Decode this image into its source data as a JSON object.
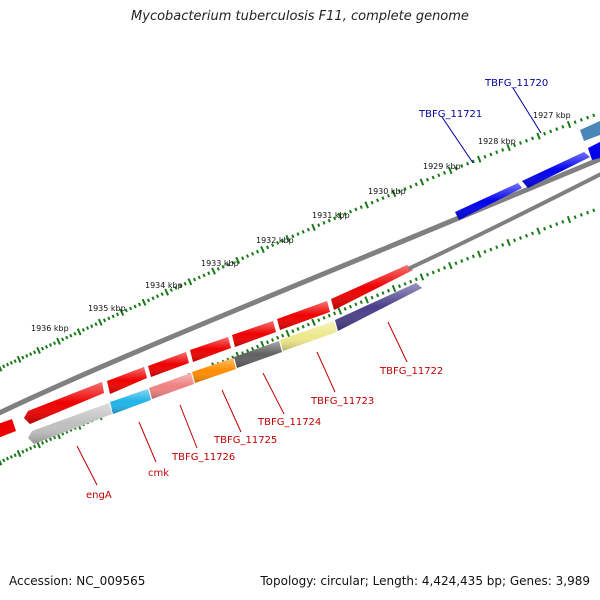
{
  "title": "Mycobacterium tuberculosis F11, complete genome",
  "accession": "Accession: NC_009565",
  "topology": "Topology: circular; Length: 4,424,435 bp; Genes: 3,989",
  "colors": {
    "backbone": "#808080",
    "tick": "#1a7a1a",
    "forward_label": "#00009a",
    "reverse_label": "#c00000"
  },
  "kbp_labels": [
    "1927 kbp",
    "1928 kbp",
    "1929 kbp",
    "1930 kbp",
    "1931 kbp",
    "1932 kbp",
    "1933 kbp",
    "1934 kbp",
    "1935 kbp",
    "1936 kbp"
  ],
  "forward_genes": [
    {
      "label": "TBFG_11720",
      "color": "#0000ee"
    },
    {
      "label": "TBFG_11721",
      "color": "#0000ee"
    },
    {
      "label": "",
      "color": "#4a86b8"
    }
  ],
  "reverse_genes": [
    {
      "label": "engA",
      "color": "#c0c0c0"
    },
    {
      "label": "cmk",
      "color": "#1fb4e8"
    },
    {
      "label": "TBFG_11726",
      "color": "#f08080"
    },
    {
      "label": "TBFG_11725",
      "color": "#ff8c00"
    },
    {
      "label": "TBFG_11724",
      "color": "#606060"
    },
    {
      "label": "TBFG_11723",
      "color": "#eee88a"
    },
    {
      "label": "TBFG_11722",
      "color": "#4a3f8a"
    }
  ],
  "cds_color": "#ee0000"
}
